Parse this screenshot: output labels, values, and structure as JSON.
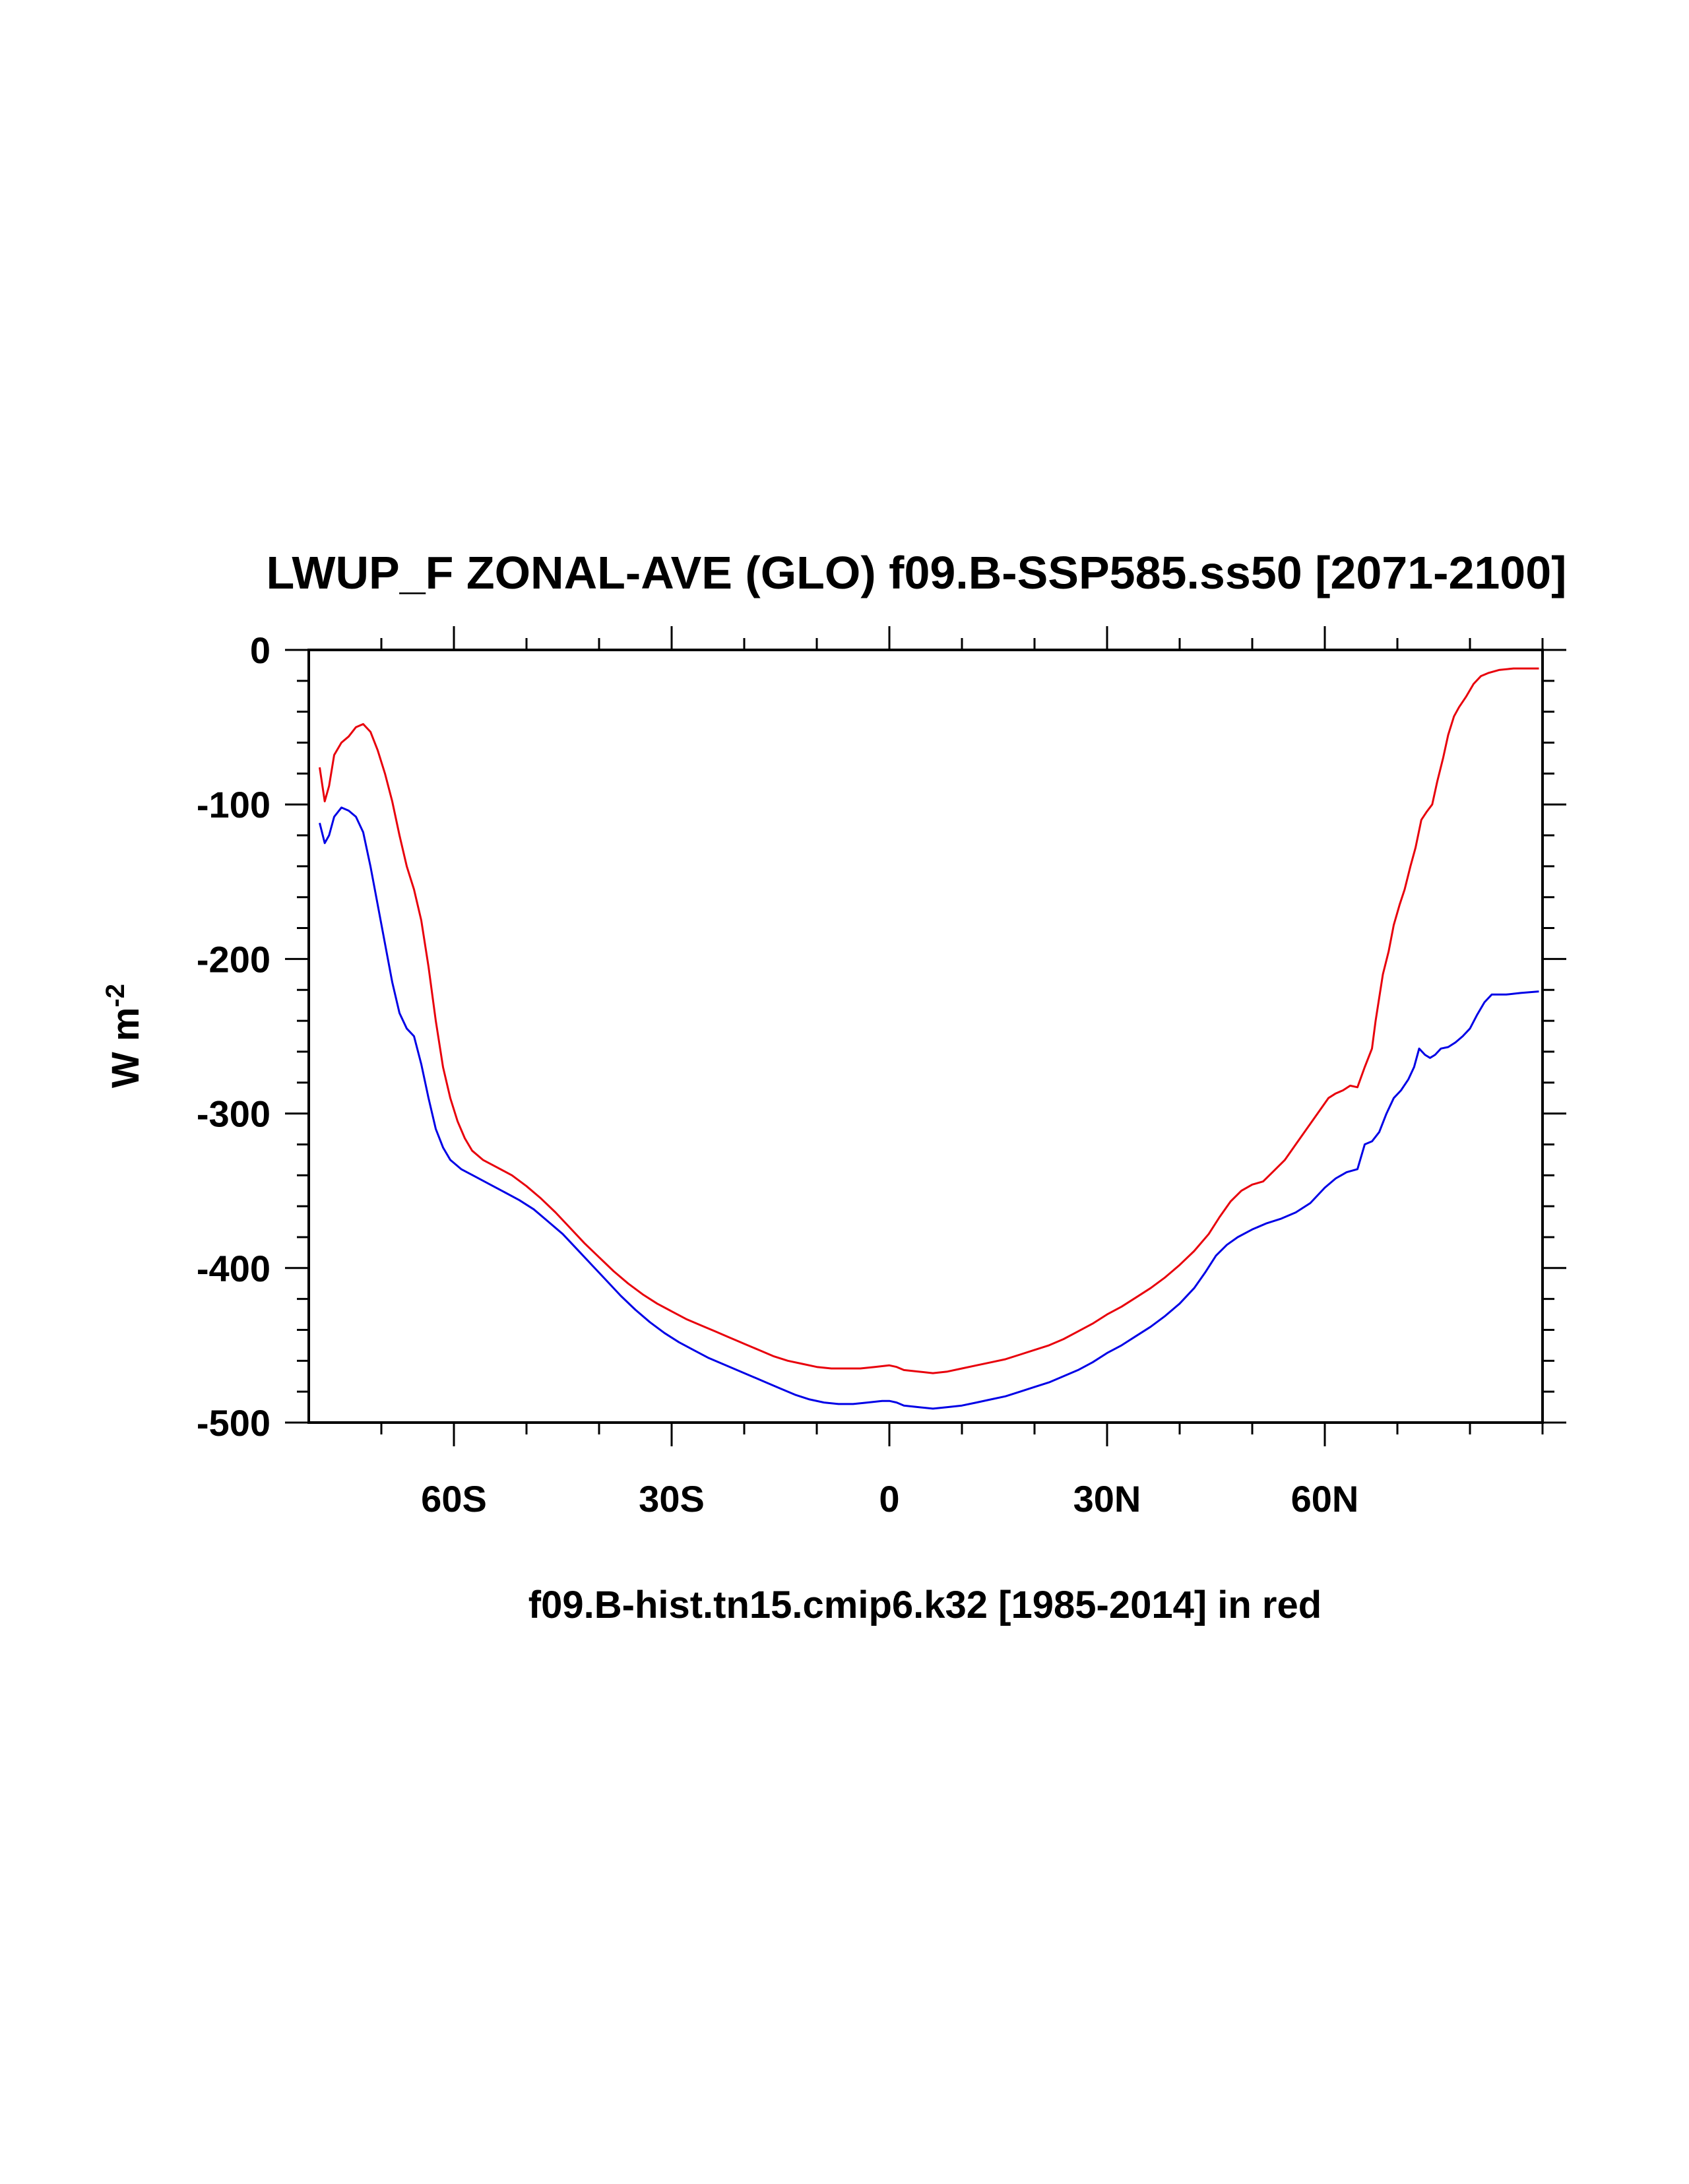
{
  "chart_data": {
    "type": "line",
    "title": "LWUP_F ZONAL-AVE (GLO) f09.B-SSP585.ss50 [2071-2100]",
    "ylabel": "W m",
    "ylabel_exponent": "-2",
    "footer": "f09.B-hist.tn15.cmip6.k32 [1985-2014] in red",
    "xlim": [
      -80,
      90
    ],
    "ylim": [
      -500,
      0
    ],
    "x_ticks": [
      {
        "value": -60,
        "label": "60S"
      },
      {
        "value": -30,
        "label": "30S"
      },
      {
        "value": 0,
        "label": "0"
      },
      {
        "value": 30,
        "label": "30N"
      },
      {
        "value": 60,
        "label": "60N"
      }
    ],
    "y_ticks": [
      {
        "value": 0,
        "label": "0"
      },
      {
        "value": -100,
        "label": "-100"
      },
      {
        "value": -200,
        "label": "-200"
      },
      {
        "value": -300,
        "label": "-300"
      },
      {
        "value": -400,
        "label": "-400"
      },
      {
        "value": -500,
        "label": "-500"
      }
    ],
    "grid": false,
    "series": [
      {
        "color": "#e8000b",
        "points": [
          [
            -78.5,
            -76
          ],
          [
            -77.8,
            -98
          ],
          [
            -77.2,
            -88
          ],
          [
            -76.5,
            -68
          ],
          [
            -75.5,
            -60
          ],
          [
            -74.5,
            -56
          ],
          [
            -73.5,
            -50
          ],
          [
            -72.5,
            -48
          ],
          [
            -71.5,
            -53
          ],
          [
            -70.5,
            -65
          ],
          [
            -69.5,
            -80
          ],
          [
            -68.5,
            -98
          ],
          [
            -67.5,
            -120
          ],
          [
            -66.5,
            -140
          ],
          [
            -65.5,
            -155
          ],
          [
            -64.5,
            -175
          ],
          [
            -63.5,
            -205
          ],
          [
            -62.5,
            -240
          ],
          [
            -61.5,
            -270
          ],
          [
            -60.5,
            -290
          ],
          [
            -59.5,
            -305
          ],
          [
            -58.5,
            -316
          ],
          [
            -57.5,
            -324
          ],
          [
            -56,
            -330
          ],
          [
            -54,
            -335
          ],
          [
            -52,
            -340
          ],
          [
            -50,
            -347
          ],
          [
            -48,
            -355
          ],
          [
            -46,
            -364
          ],
          [
            -44,
            -374
          ],
          [
            -42,
            -384
          ],
          [
            -40,
            -393
          ],
          [
            -38,
            -402
          ],
          [
            -36,
            -410
          ],
          [
            -34,
            -417
          ],
          [
            -32,
            -423
          ],
          [
            -30,
            -428
          ],
          [
            -28,
            -433
          ],
          [
            -26,
            -437
          ],
          [
            -24,
            -441
          ],
          [
            -22,
            -445
          ],
          [
            -20,
            -449
          ],
          [
            -18,
            -453
          ],
          [
            -16,
            -457
          ],
          [
            -14,
            -460
          ],
          [
            -12,
            -462
          ],
          [
            -10,
            -464
          ],
          [
            -8,
            -465
          ],
          [
            -6,
            -465
          ],
          [
            -4,
            -465
          ],
          [
            -2,
            -464
          ],
          [
            0,
            -463
          ],
          [
            1,
            -464
          ],
          [
            2,
            -466
          ],
          [
            4,
            -467
          ],
          [
            6,
            -468
          ],
          [
            8,
            -467
          ],
          [
            10,
            -465
          ],
          [
            12,
            -463
          ],
          [
            14,
            -461
          ],
          [
            16,
            -459
          ],
          [
            18,
            -456
          ],
          [
            20,
            -453
          ],
          [
            22,
            -450
          ],
          [
            24,
            -446
          ],
          [
            26,
            -441
          ],
          [
            28,
            -436
          ],
          [
            30,
            -430
          ],
          [
            32,
            -425
          ],
          [
            34,
            -419
          ],
          [
            36,
            -413
          ],
          [
            38,
            -406
          ],
          [
            40,
            -398
          ],
          [
            42,
            -389
          ],
          [
            44,
            -378
          ],
          [
            45.5,
            -367
          ],
          [
            47,
            -357
          ],
          [
            48.5,
            -350
          ],
          [
            50,
            -346
          ],
          [
            51.5,
            -344
          ],
          [
            53,
            -337
          ],
          [
            54.5,
            -330
          ],
          [
            56,
            -320
          ],
          [
            57.5,
            -310
          ],
          [
            59,
            -300
          ],
          [
            60.5,
            -290
          ],
          [
            61.5,
            -287
          ],
          [
            62.5,
            -285
          ],
          [
            63.5,
            -282
          ],
          [
            64.5,
            -283
          ],
          [
            65.5,
            -270
          ],
          [
            66.5,
            -258
          ],
          [
            67,
            -240
          ],
          [
            67.5,
            -225
          ],
          [
            68,
            -210
          ],
          [
            68.8,
            -195
          ],
          [
            69.5,
            -178
          ],
          [
            70.3,
            -165
          ],
          [
            71,
            -155
          ],
          [
            71.8,
            -140
          ],
          [
            72.5,
            -128
          ],
          [
            73.3,
            -110
          ],
          [
            74,
            -105
          ],
          [
            74.8,
            -100
          ],
          [
            75.5,
            -85
          ],
          [
            76.3,
            -70
          ],
          [
            77,
            -55
          ],
          [
            77.8,
            -43
          ],
          [
            78.5,
            -37
          ],
          [
            79.5,
            -30
          ],
          [
            80.5,
            -22
          ],
          [
            81.5,
            -17
          ],
          [
            82.5,
            -15
          ],
          [
            84,
            -13
          ],
          [
            86,
            -12
          ],
          [
            88,
            -12
          ],
          [
            89.5,
            -12
          ]
        ]
      },
      {
        "color": "#0000e6",
        "points": [
          [
            -78.5,
            -112
          ],
          [
            -77.8,
            -125
          ],
          [
            -77.2,
            -120
          ],
          [
            -76.5,
            -108
          ],
          [
            -75.5,
            -102
          ],
          [
            -74.5,
            -104
          ],
          [
            -73.5,
            -108
          ],
          [
            -72.5,
            -118
          ],
          [
            -71.5,
            -140
          ],
          [
            -70.5,
            -165
          ],
          [
            -69.5,
            -190
          ],
          [
            -68.5,
            -215
          ],
          [
            -67.5,
            -235
          ],
          [
            -66.5,
            -245
          ],
          [
            -65.5,
            -250
          ],
          [
            -64.5,
            -268
          ],
          [
            -63.5,
            -290
          ],
          [
            -62.5,
            -310
          ],
          [
            -61.5,
            -322
          ],
          [
            -60.5,
            -330
          ],
          [
            -59,
            -336
          ],
          [
            -57,
            -341
          ],
          [
            -55,
            -346
          ],
          [
            -53,
            -351
          ],
          [
            -51,
            -356
          ],
          [
            -49,
            -362
          ],
          [
            -47,
            -370
          ],
          [
            -45,
            -378
          ],
          [
            -43,
            -388
          ],
          [
            -41,
            -398
          ],
          [
            -39,
            -408
          ],
          [
            -37,
            -418
          ],
          [
            -35,
            -427
          ],
          [
            -33,
            -435
          ],
          [
            -31,
            -442
          ],
          [
            -29,
            -448
          ],
          [
            -27,
            -453
          ],
          [
            -25,
            -458
          ],
          [
            -23,
            -462
          ],
          [
            -21,
            -466
          ],
          [
            -19,
            -470
          ],
          [
            -17,
            -474
          ],
          [
            -15,
            -478
          ],
          [
            -13,
            -482
          ],
          [
            -11,
            -485
          ],
          [
            -9,
            -487
          ],
          [
            -7,
            -488
          ],
          [
            -5,
            -488
          ],
          [
            -3,
            -487
          ],
          [
            -1,
            -486
          ],
          [
            0,
            -486
          ],
          [
            1,
            -487
          ],
          [
            2,
            -489
          ],
          [
            4,
            -490
          ],
          [
            6,
            -491
          ],
          [
            8,
            -490
          ],
          [
            10,
            -489
          ],
          [
            12,
            -487
          ],
          [
            14,
            -485
          ],
          [
            16,
            -483
          ],
          [
            18,
            -480
          ],
          [
            20,
            -477
          ],
          [
            22,
            -474
          ],
          [
            24,
            -470
          ],
          [
            26,
            -466
          ],
          [
            28,
            -461
          ],
          [
            30,
            -455
          ],
          [
            32,
            -450
          ],
          [
            34,
            -444
          ],
          [
            36,
            -438
          ],
          [
            38,
            -431
          ],
          [
            40,
            -423
          ],
          [
            42,
            -413
          ],
          [
            43.5,
            -403
          ],
          [
            45,
            -392
          ],
          [
            46.5,
            -385
          ],
          [
            48,
            -380
          ],
          [
            50,
            -375
          ],
          [
            52,
            -371
          ],
          [
            54,
            -368
          ],
          [
            56,
            -364
          ],
          [
            58,
            -358
          ],
          [
            60,
            -348
          ],
          [
            61.5,
            -342
          ],
          [
            63,
            -338
          ],
          [
            64.5,
            -336
          ],
          [
            65.5,
            -320
          ],
          [
            66.5,
            -318
          ],
          [
            67.5,
            -312
          ],
          [
            68.5,
            -300
          ],
          [
            69.5,
            -290
          ],
          [
            70.5,
            -285
          ],
          [
            71.5,
            -278
          ],
          [
            72.3,
            -270
          ],
          [
            73,
            -258
          ],
          [
            73.8,
            -262
          ],
          [
            74.5,
            -264
          ],
          [
            75.2,
            -262
          ],
          [
            76,
            -258
          ],
          [
            77,
            -257
          ],
          [
            78,
            -254
          ],
          [
            79,
            -250
          ],
          [
            80,
            -245
          ],
          [
            81,
            -236
          ],
          [
            82,
            -228
          ],
          [
            83,
            -223
          ],
          [
            85,
            -223
          ],
          [
            87,
            -222
          ],
          [
            89.5,
            -221
          ]
        ]
      }
    ]
  }
}
